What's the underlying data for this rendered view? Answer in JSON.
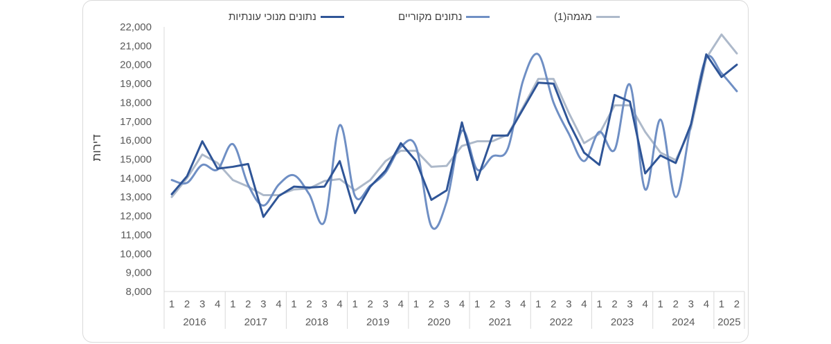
{
  "chart_data": {
    "type": "line",
    "ylabel": "דירות",
    "ylim": [
      8000,
      22000
    ],
    "ytick_step": 1000,
    "yticks": [
      "8,000",
      "9,000",
      "10,000",
      "11,000",
      "12,000",
      "13,000",
      "14,000",
      "15,000",
      "16,000",
      "17,000",
      "18,000",
      "19,000",
      "20,000",
      "21,000",
      "22,000"
    ],
    "grid": false,
    "legend_position": "top",
    "years": [
      {
        "label": "2016",
        "quarters": [
          "1",
          "2",
          "3",
          "4"
        ]
      },
      {
        "label": "2017",
        "quarters": [
          "1",
          "2",
          "3",
          "4"
        ]
      },
      {
        "label": "2018",
        "quarters": [
          "1",
          "2",
          "3",
          "4"
        ]
      },
      {
        "label": "2019",
        "quarters": [
          "1",
          "2",
          "3",
          "4"
        ]
      },
      {
        "label": "2020",
        "quarters": [
          "1",
          "2",
          "3",
          "4"
        ]
      },
      {
        "label": "2021",
        "quarters": [
          "1",
          "2",
          "3",
          "4"
        ]
      },
      {
        "label": "2022",
        "quarters": [
          "1",
          "2",
          "3",
          "4"
        ]
      },
      {
        "label": "2023",
        "quarters": [
          "1",
          "2",
          "3",
          "4"
        ]
      },
      {
        "label": "2024",
        "quarters": [
          "1",
          "2",
          "3",
          "4"
        ]
      },
      {
        "label": "2025",
        "quarters": [
          "1",
          "2"
        ]
      }
    ],
    "series": [
      {
        "name": "נתונים מנוכי עונתיות",
        "color": "#2f5597",
        "smooth": false,
        "values": [
          13150,
          14100,
          15950,
          14500,
          14600,
          14750,
          11950,
          13050,
          13550,
          13500,
          13550,
          14900,
          12150,
          13550,
          14400,
          15850,
          14900,
          12850,
          13350,
          16950,
          13900,
          16250,
          16250,
          17650,
          19050,
          19000,
          16950,
          15350,
          14700,
          18400,
          18050,
          14250,
          15200,
          14800,
          16850,
          20550,
          19350,
          20000
        ]
      },
      {
        "name": "נתונים מקוריים",
        "color": "#6f8fc4",
        "smooth": true,
        "values": [
          13900,
          13750,
          14700,
          14450,
          15800,
          13650,
          12550,
          13650,
          14150,
          13150,
          11700,
          16800,
          13050,
          13600,
          14300,
          15650,
          15650,
          11450,
          12750,
          16500,
          14450,
          15150,
          15550,
          19150,
          20550,
          18000,
          16350,
          14900,
          16450,
          15500,
          18950,
          13400,
          17100,
          13000,
          16850,
          20350,
          19550,
          18600
        ]
      },
      {
        "name": "מגמה(1)",
        "color": "#adb9ca",
        "smooth": false,
        "values": [
          13000,
          14000,
          15250,
          14800,
          13900,
          13550,
          13100,
          13100,
          13400,
          13450,
          13850,
          13950,
          13350,
          13900,
          14900,
          15450,
          15450,
          14600,
          14650,
          15700,
          15950,
          15950,
          16300,
          17750,
          19250,
          19250,
          17450,
          15850,
          16350,
          17850,
          17850,
          16450,
          15350,
          14950,
          16650,
          20350,
          21600,
          20600
        ]
      }
    ]
  }
}
